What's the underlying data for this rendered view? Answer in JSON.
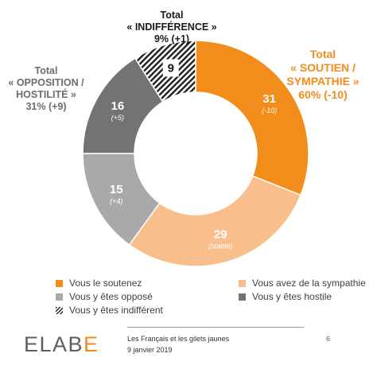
{
  "groups": {
    "indifference": {
      "line1": "Total",
      "line2": "« INDIFFÉRENCE »",
      "line3": "9% (+1)"
    },
    "opposition": {
      "line1": "Total",
      "line2": "« OPPOSITION /",
      "line3": "HOSTILITÉ »",
      "line4": "31% (+9)"
    },
    "soutien": {
      "line1": "Total",
      "line2": "« SOUTIEN /",
      "line3": "SYMPATHIE »",
      "line4": "60% (-10)"
    }
  },
  "chart_data": {
    "type": "pie",
    "donut": true,
    "slices": [
      {
        "name": "Vous le soutenez",
        "value": 31,
        "change": "(-10)",
        "color": "#f28c1b",
        "label_color": "#ffffff"
      },
      {
        "name": "Vous avez de la sympathie",
        "value": 29,
        "change": "(stable)",
        "color": "#f8bf8d",
        "label_color": "#ffffff"
      },
      {
        "name": "Vous y êtes opposé",
        "value": 15,
        "change": "(+4)",
        "color": "#a9a9a9",
        "label_color": "#ffffff"
      },
      {
        "name": "Vous y êtes hostile",
        "value": 16,
        "change": "(+5)",
        "color": "#737373",
        "label_color": "#ffffff"
      },
      {
        "name": "Vous y êtes indifférent",
        "value": 9,
        "change": "",
        "color": "hatched",
        "label_color": "#1a1a1a"
      }
    ],
    "start": "top, clockwise"
  },
  "legend": [
    {
      "label": "Vous le soutenez",
      "color": "#f28c1b"
    },
    {
      "label": "Vous avez de la sympathie",
      "color": "#f8bf8d"
    },
    {
      "label": "Vous y êtes opposé",
      "color": "#a9a9a9"
    },
    {
      "label": "Vous y êtes hostile",
      "color": "#737373"
    },
    {
      "label": "Vous y êtes indifférent",
      "color": "hatched"
    }
  ],
  "footer": {
    "logo_main": "ELAB",
    "logo_accent": "E",
    "title": "Les Français et les gilets jaunes",
    "date": "9 janvier 2019",
    "page": "6"
  }
}
